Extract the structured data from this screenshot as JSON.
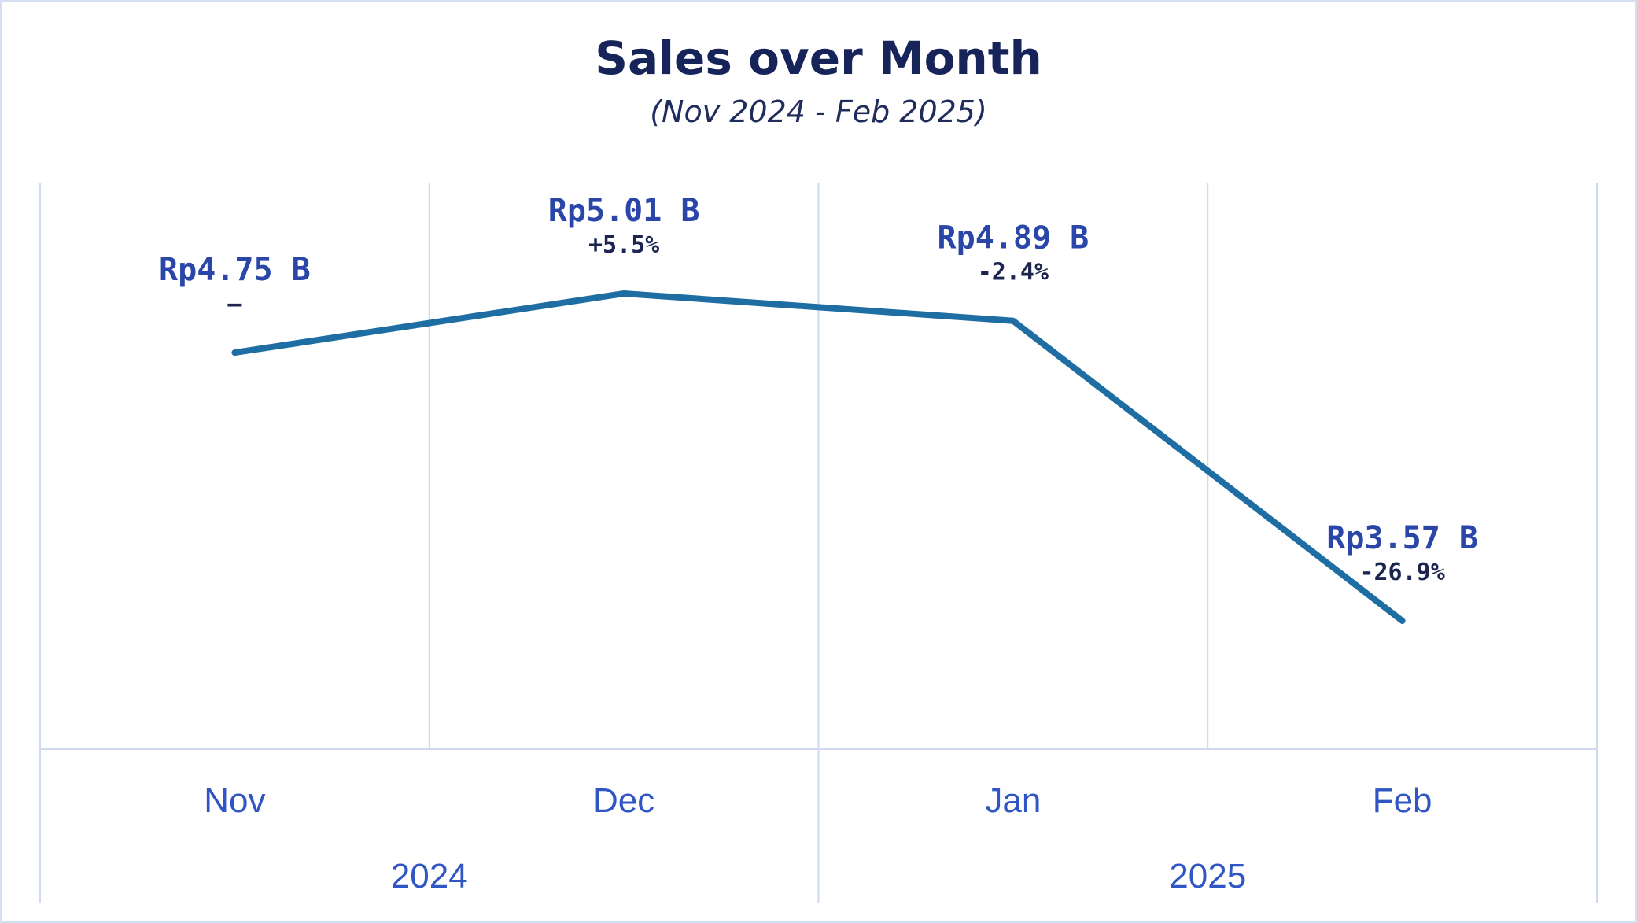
{
  "chart_data": {
    "type": "line",
    "title": "Sales over Month",
    "subtitle": "(Nov 2024 - Feb 2025)",
    "categories": [
      "Nov",
      "Dec",
      "Jan",
      "Feb"
    ],
    "years": [
      {
        "label": "2024",
        "months": [
          "Nov",
          "Dec"
        ]
      },
      {
        "label": "2025",
        "months": [
          "Jan",
          "Feb"
        ]
      }
    ],
    "series": [
      {
        "values": [
          4.75,
          5.01,
          4.89,
          3.57
        ],
        "value_labels": [
          "Rp4.75 B",
          "Rp5.01 B",
          "Rp4.89 B",
          "Rp3.57 B"
        ],
        "change_labels": [
          "–",
          "+5.5%",
          "-2.4%",
          "-26.9%"
        ]
      }
    ],
    "ylabel": "",
    "xlabel": "",
    "line_color": "#1f6ea3",
    "grid": true
  }
}
